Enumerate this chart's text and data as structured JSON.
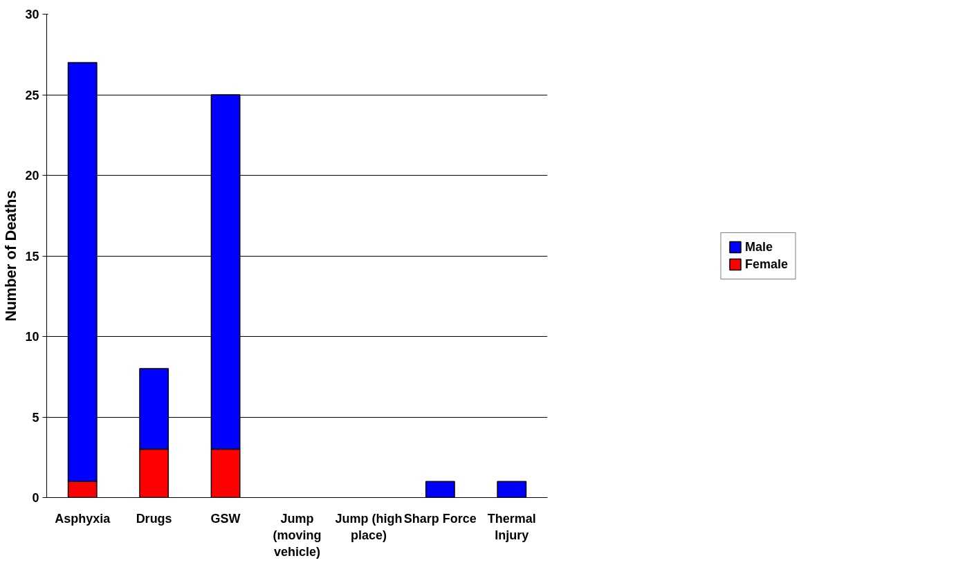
{
  "chart_data": {
    "type": "bar",
    "stacked": true,
    "ylabel": "Number of Deaths",
    "categories": [
      "Asphyxia",
      "Drugs",
      "GSW",
      "Jump (moving vehicle)",
      "Jump (high place)",
      "Sharp Force",
      "Thermal Injury"
    ],
    "series": [
      {
        "name": "Female",
        "color": "#ff0000",
        "values": [
          1,
          3,
          3,
          0,
          0,
          0,
          0
        ]
      },
      {
        "name": "Male",
        "color": "#0000ff",
        "values": [
          26,
          5,
          22,
          0,
          0,
          1,
          1
        ]
      }
    ],
    "ylim": [
      0,
      30
    ],
    "yticks": [
      0,
      5,
      10,
      15,
      20,
      25,
      30
    ],
    "grid": "y",
    "legend": "right"
  }
}
